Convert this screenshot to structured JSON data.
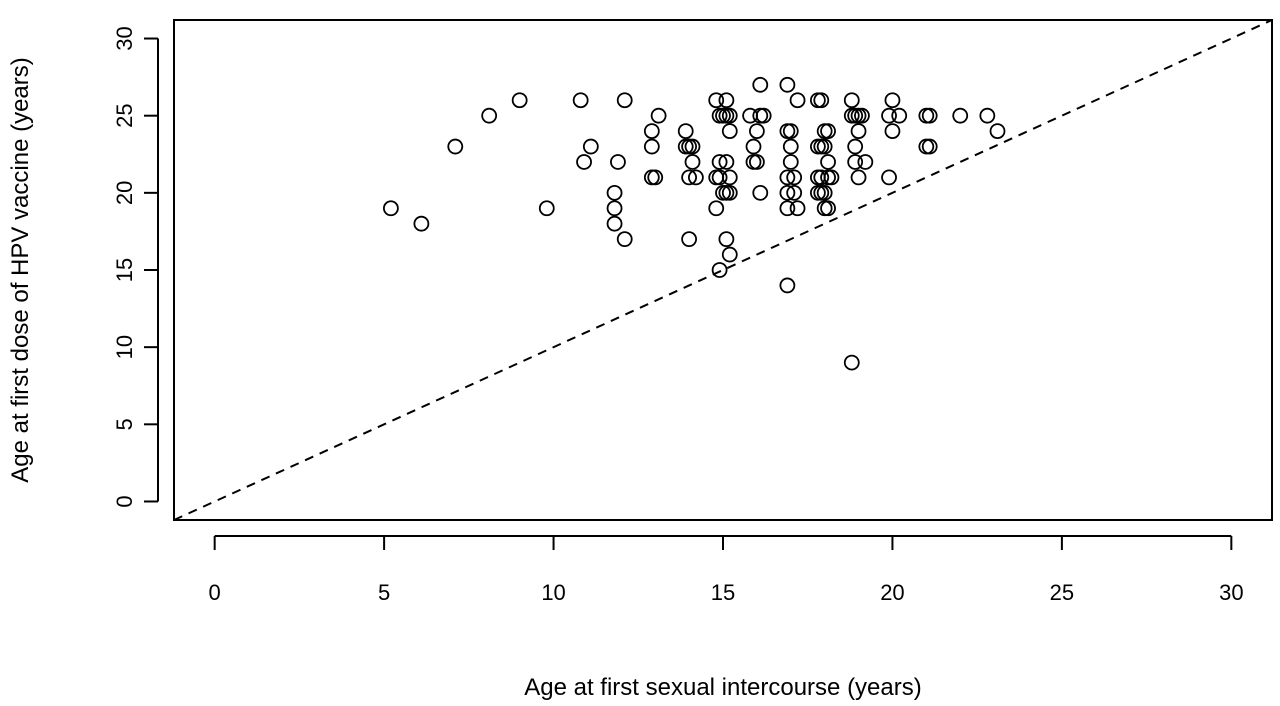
{
  "chart_data": {
    "type": "scatter",
    "title": "",
    "xlabel": "Age at first sexual intercourse (years)",
    "ylabel": "Age at first dose of HPV vaccine (years)",
    "xlim": [
      -1.2,
      31.2
    ],
    "ylim": [
      -1.2,
      31.2
    ],
    "xticks": [
      0,
      5,
      10,
      15,
      20,
      25,
      30
    ],
    "yticks": [
      0,
      5,
      10,
      15,
      20,
      25,
      30
    ],
    "xtick_labels": [
      "0",
      "5",
      "10",
      "15",
      "20",
      "25",
      "30"
    ],
    "ytick_labels": [
      "0",
      "5",
      "10",
      "15",
      "20",
      "25",
      "30"
    ],
    "marker": "open-circle",
    "grid": false,
    "reference_line": {
      "style": "dashed",
      "points": [
        [
          -1.2,
          -1.2
        ],
        [
          31.2,
          31.2
        ]
      ]
    },
    "points": [
      [
        5.2,
        19
      ],
      [
        6.1,
        18
      ],
      [
        7.1,
        23
      ],
      [
        8.1,
        25
      ],
      [
        9.0,
        26
      ],
      [
        9.8,
        19
      ],
      [
        10.8,
        26
      ],
      [
        10.9,
        22
      ],
      [
        11.1,
        23
      ],
      [
        11.8,
        20
      ],
      [
        11.8,
        19
      ],
      [
        11.8,
        18
      ],
      [
        11.9,
        22
      ],
      [
        12.1,
        17
      ],
      [
        12.1,
        26
      ],
      [
        12.9,
        21
      ],
      [
        13.0,
        21
      ],
      [
        12.9,
        24
      ],
      [
        12.9,
        23
      ],
      [
        13.1,
        25
      ],
      [
        13.9,
        24
      ],
      [
        13.9,
        23
      ],
      [
        14.0,
        23
      ],
      [
        14.1,
        23
      ],
      [
        14.0,
        21
      ],
      [
        14.1,
        22
      ],
      [
        14.2,
        21
      ],
      [
        14.0,
        17
      ],
      [
        14.8,
        26
      ],
      [
        14.9,
        25
      ],
      [
        15.0,
        25
      ],
      [
        14.9,
        22
      ],
      [
        14.8,
        21
      ],
      [
        14.9,
        21
      ],
      [
        14.8,
        19
      ],
      [
        15.0,
        20
      ],
      [
        15.1,
        26
      ],
      [
        15.1,
        25
      ],
      [
        15.2,
        25
      ],
      [
        15.1,
        22
      ],
      [
        15.2,
        21
      ],
      [
        15.1,
        20
      ],
      [
        15.2,
        20
      ],
      [
        15.2,
        24
      ],
      [
        15.1,
        17
      ],
      [
        15.2,
        16
      ],
      [
        14.9,
        15
      ],
      [
        15.8,
        25
      ],
      [
        15.9,
        23
      ],
      [
        15.9,
        22
      ],
      [
        16.0,
        22
      ],
      [
        16.0,
        24
      ],
      [
        16.1,
        25
      ],
      [
        16.2,
        25
      ],
      [
        16.1,
        27
      ],
      [
        16.1,
        20
      ],
      [
        16.9,
        27
      ],
      [
        16.9,
        24
      ],
      [
        17.0,
        24
      ],
      [
        17.0,
        22
      ],
      [
        16.9,
        21
      ],
      [
        17.1,
        21
      ],
      [
        17.0,
        23
      ],
      [
        16.9,
        20
      ],
      [
        17.1,
        20
      ],
      [
        16.9,
        19
      ],
      [
        17.2,
        19
      ],
      [
        17.2,
        26
      ],
      [
        16.9,
        14
      ],
      [
        17.8,
        26
      ],
      [
        17.9,
        26
      ],
      [
        17.8,
        23
      ],
      [
        17.9,
        23
      ],
      [
        18.0,
        23
      ],
      [
        17.8,
        21
      ],
      [
        17.9,
        21
      ],
      [
        17.8,
        20
      ],
      [
        17.9,
        20
      ],
      [
        18.0,
        20
      ],
      [
        18.0,
        24
      ],
      [
        18.1,
        24
      ],
      [
        18.1,
        22
      ],
      [
        18.1,
        21
      ],
      [
        18.2,
        21
      ],
      [
        18.0,
        19
      ],
      [
        18.1,
        19
      ],
      [
        18.8,
        26
      ],
      [
        18.8,
        25
      ],
      [
        18.9,
        25
      ],
      [
        19.0,
        25
      ],
      [
        19.1,
        25
      ],
      [
        18.9,
        23
      ],
      [
        18.9,
        22
      ],
      [
        19.0,
        24
      ],
      [
        19.0,
        21
      ],
      [
        19.2,
        22
      ],
      [
        18.8,
        9
      ],
      [
        19.9,
        25
      ],
      [
        20.0,
        26
      ],
      [
        20.0,
        24
      ],
      [
        20.2,
        25
      ],
      [
        19.9,
        21
      ],
      [
        21.0,
        25
      ],
      [
        21.1,
        25
      ],
      [
        21.0,
        23
      ],
      [
        21.1,
        23
      ],
      [
        22.0,
        25
      ],
      [
        22.8,
        25
      ],
      [
        23.1,
        24
      ]
    ]
  }
}
